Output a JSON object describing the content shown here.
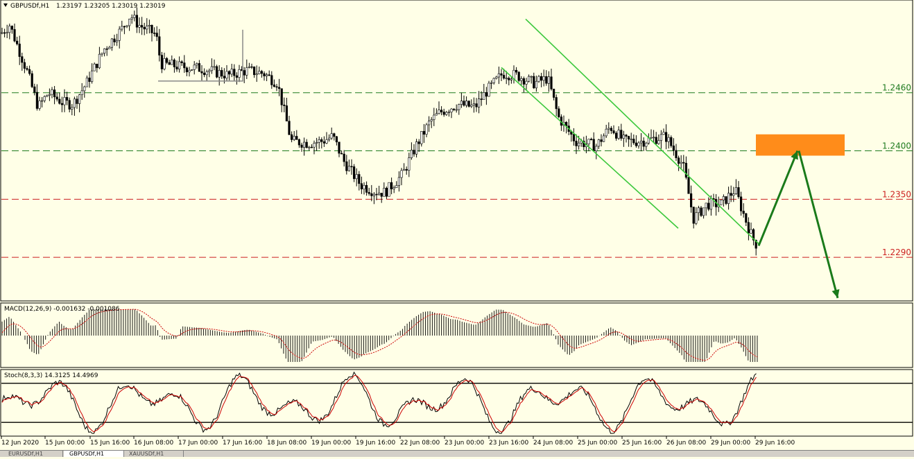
{
  "window": {
    "title": "GBPUSDf,H1",
    "ohlc": "1.23197 1.23205 1.23019 1.23019"
  },
  "tabs": [
    {
      "label": "EURUSDf,H1",
      "active": false
    },
    {
      "label": "GBPUSDf,H1",
      "active": true
    },
    {
      "label": "XAUUSDf,H1",
      "active": false
    }
  ],
  "indicators": {
    "macd": {
      "label": "MACD(12,26,9) -0.001632 -0.001086"
    },
    "stoch": {
      "label": "Stoch(8,3,3) 14.3125 14.4969",
      "levels": [
        80,
        20
      ]
    }
  },
  "colors": {
    "background": "#ffffe7",
    "candle": "#000000",
    "support_green": "#1f7a1f",
    "resistance_red": "#cc1f1f",
    "channel": "#3cc83c",
    "target_zone": "#ff8c1a",
    "arrow": "#1a7a1a",
    "macd_signal": "#cc0000",
    "stoch_main": "#000000",
    "stoch_signal": "#cc0000"
  },
  "chart_data": {
    "type": "candlestick",
    "symbol": "GBPUSDf",
    "timeframe": "H1",
    "x_ticks": [
      "12 Jun 2020",
      "15 Jun 00:00",
      "15 Jun 16:00",
      "16 Jun 08:00",
      "17 Jun 00:00",
      "17 Jun 16:00",
      "18 Jun 08:00",
      "19 Jun 00:00",
      "19 Jun 16:00",
      "22 Jun 08:00",
      "23 Jun 00:00",
      "23 Jun 16:00",
      "24 Jun 08:00",
      "25 Jun 00:00",
      "25 Jun 16:00",
      "26 Jun 08:00",
      "29 Jun 00:00",
      "29 Jun 16:00"
    ],
    "ylim": [
      1.2245,
      1.2555
    ],
    "price_path": [
      [
        0,
        1.252
      ],
      [
        14,
        1.253
      ],
      [
        40,
        1.248
      ],
      [
        55,
        1.2445
      ],
      [
        70,
        1.246
      ],
      [
        90,
        1.245
      ],
      [
        105,
        1.2448
      ],
      [
        125,
        1.247
      ],
      [
        150,
        1.2505
      ],
      [
        175,
        1.2525
      ],
      [
        188,
        1.254
      ],
      [
        200,
        1.253
      ],
      [
        225,
        1.252
      ],
      [
        232,
        1.249
      ],
      [
        260,
        1.2487
      ],
      [
        290,
        1.2485
      ],
      [
        330,
        1.2478
      ],
      [
        355,
        1.2483
      ],
      [
        380,
        1.248
      ],
      [
        400,
        1.247
      ],
      [
        420,
        1.241
      ],
      [
        445,
        1.2408
      ],
      [
        465,
        1.241
      ],
      [
        480,
        1.2415
      ],
      [
        495,
        1.239
      ],
      [
        520,
        1.2365
      ],
      [
        540,
        1.2358
      ],
      [
        555,
        1.2357
      ],
      [
        580,
        1.2375
      ],
      [
        600,
        1.2405
      ],
      [
        620,
        1.243
      ],
      [
        635,
        1.244
      ],
      [
        660,
        1.2448
      ],
      [
        685,
        1.2445
      ],
      [
        700,
        1.246
      ],
      [
        725,
        1.248
      ],
      [
        745,
        1.2478
      ],
      [
        770,
        1.247
      ],
      [
        790,
        1.2475
      ],
      [
        805,
        1.2435
      ],
      [
        830,
        1.241
      ],
      [
        860,
        1.2405
      ],
      [
        880,
        1.2425
      ],
      [
        900,
        1.241
      ],
      [
        925,
        1.241
      ],
      [
        960,
        1.2415
      ],
      [
        985,
        1.2385
      ],
      [
        1000,
        1.233
      ],
      [
        1020,
        1.2345
      ],
      [
        1040,
        1.2345
      ],
      [
        1060,
        1.236
      ],
      [
        1072,
        1.2335
      ],
      [
        1085,
        1.231
      ],
      [
        1092,
        1.2302
      ]
    ],
    "horizontal_levels": [
      {
        "label": "1.2460",
        "value": 1.246,
        "color": "green"
      },
      {
        "label": "1.2400",
        "value": 1.24,
        "color": "green"
      },
      {
        "label": "1.2350",
        "value": 1.235,
        "color": "red"
      },
      {
        "label": "1.2290",
        "value": 1.229,
        "color": "red"
      }
    ],
    "channel_lines": [
      {
        "from": [
          723,
          1.2486
        ],
        "to": [
          978,
          1.232
        ]
      },
      {
        "from": [
          758,
          1.2536
        ],
        "to": [
          1094,
          1.2304
        ]
      }
    ],
    "target_zone": {
      "x_from": 1090,
      "x_to": 1218,
      "price_from": 1.2395,
      "price_to": 1.2417
    },
    "arrows": [
      {
        "from": [
          1094,
          1.2302
        ],
        "to": [
          1150,
          1.24
        ]
      },
      {
        "from": [
          1152,
          1.24
        ],
        "to": [
          1208,
          1.2248
        ]
      }
    ],
    "rectangle_annotation": {
      "x_from": 228,
      "x_to": 350,
      "price_from": 1.2472,
      "price_to": 1.2525
    },
    "indicators": {
      "macd": {
        "params": "12,26,9",
        "main": -0.001632,
        "signal": -0.001086
      },
      "stochastic": {
        "params": "8,3,3",
        "k": 14.3125,
        "d": 14.4969,
        "overbought": 80,
        "oversold": 20
      }
    }
  }
}
